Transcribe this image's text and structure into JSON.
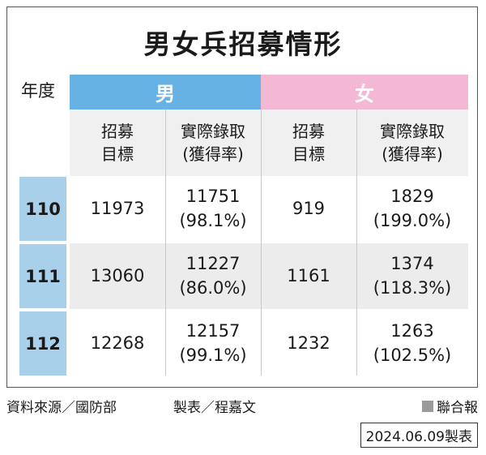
{
  "title": "男女兵招募情形",
  "year_label": "年度",
  "groups": {
    "male": "男",
    "female": "女"
  },
  "subheaders": {
    "target_line1": "招募",
    "target_line2": "目標",
    "actual_line1": "實際錄取",
    "actual_line2": "(獲得率)"
  },
  "colors": {
    "male": "#66b2e4",
    "female": "#f2b8d4",
    "year_cell": "#a9d0ea",
    "shade": "#ececec"
  },
  "chart_data": {
    "type": "table",
    "title": "男女兵招募情形",
    "columns": [
      "年度",
      "男 招募目標",
      "男 實際錄取(獲得率)",
      "女 招募目標",
      "女 實際錄取(獲得率)"
    ],
    "rows": [
      {
        "year": "110",
        "male_target": "11973",
        "male_actual": "11751",
        "male_rate": "(98.1%)",
        "female_target": "919",
        "female_actual": "1829",
        "female_rate": "(199.0%)"
      },
      {
        "year": "111",
        "male_target": "13060",
        "male_actual": "11227",
        "male_rate": "(86.0%)",
        "female_target": "1161",
        "female_actual": "1374",
        "female_rate": "(118.3%)"
      },
      {
        "year": "112",
        "male_target": "12268",
        "male_actual": "12157",
        "male_rate": "(99.1%)",
        "female_target": "1232",
        "female_actual": "1263",
        "female_rate": "(102.5%)"
      }
    ]
  },
  "footer": {
    "source": "資料來源／國防部",
    "maker": "製表／程嘉文",
    "brand": "聯合報",
    "date": "2024.06.09製表"
  }
}
